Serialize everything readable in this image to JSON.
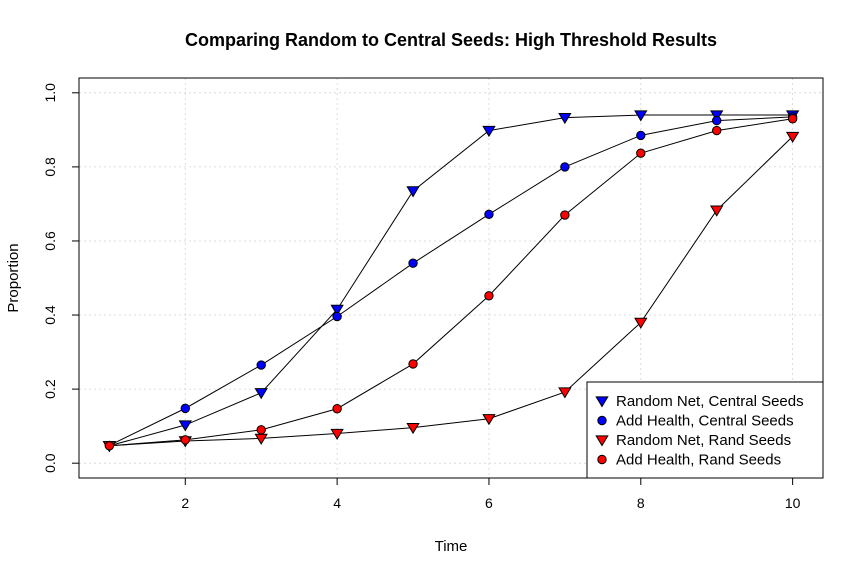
{
  "chart_data": {
    "type": "line",
    "title": "Comparing Random to Central Seeds: High Threshold Results",
    "xlabel": "Time",
    "ylabel": "Proportion",
    "xlim": [
      0.6,
      10.4
    ],
    "ylim": [
      -0.04,
      1.04
    ],
    "x_ticks": [
      2,
      4,
      6,
      8,
      10
    ],
    "y_ticks": [
      0.0,
      0.2,
      0.4,
      0.6,
      0.8,
      1.0
    ],
    "x_tick_labels": [
      "2",
      "4",
      "6",
      "8",
      "10"
    ],
    "y_tick_labels": [
      "0.0",
      "0.2",
      "0.4",
      "0.6",
      "0.8",
      "1.0"
    ],
    "grid": true,
    "legend_position": "bottom-right",
    "x": [
      1,
      2,
      3,
      4,
      5,
      6,
      7,
      8,
      9,
      10
    ],
    "series": [
      {
        "name": "Random Net, Central Seeds",
        "marker": "triangle-down",
        "color": "#0000ff",
        "values": [
          0.047,
          0.103,
          0.19,
          0.415,
          0.735,
          0.898,
          0.933,
          0.94,
          0.94,
          0.94
        ]
      },
      {
        "name": "Add Health, Central Seeds",
        "marker": "circle",
        "color": "#0000ff",
        "values": [
          0.048,
          0.148,
          0.265,
          0.396,
          0.54,
          0.672,
          0.8,
          0.885,
          0.925,
          0.935
        ]
      },
      {
        "name": "Random Net, Rand Seeds",
        "marker": "triangle-down",
        "color": "#ff0000",
        "values": [
          0.047,
          0.06,
          0.067,
          0.08,
          0.096,
          0.12,
          0.192,
          0.38,
          0.683,
          0.882
        ]
      },
      {
        "name": "Add Health, Rand Seeds",
        "marker": "circle",
        "color": "#ff0000",
        "values": [
          0.047,
          0.063,
          0.09,
          0.147,
          0.268,
          0.452,
          0.67,
          0.837,
          0.898,
          0.93
        ]
      }
    ]
  }
}
